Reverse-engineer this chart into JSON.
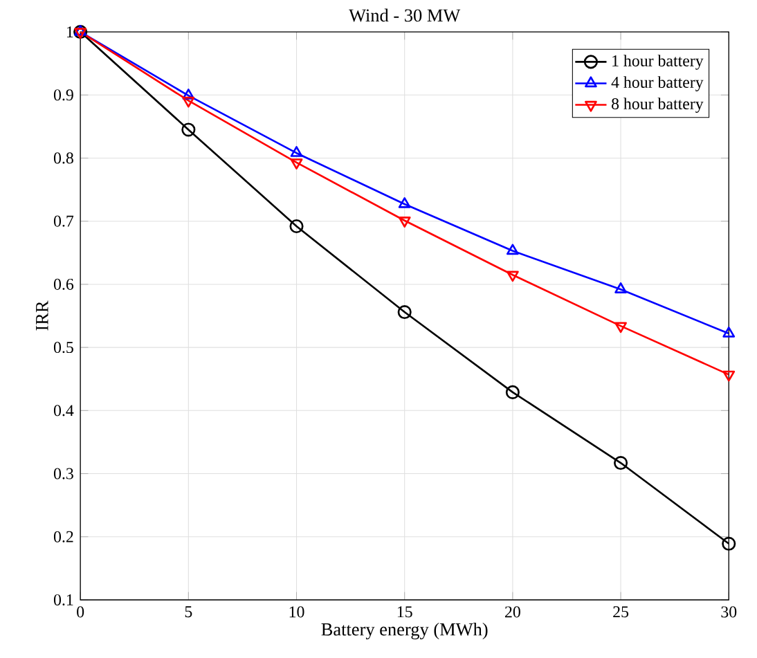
{
  "chart_data": {
    "type": "line",
    "title": "Wind - 30 MW",
    "xlabel": "Battery energy (MWh)",
    "ylabel": "IRR",
    "x": [
      0,
      5,
      10,
      15,
      20,
      25,
      30
    ],
    "series": [
      {
        "name": "1 hour battery",
        "color": "#000000",
        "marker": "circle",
        "values": [
          1.0,
          0.845,
          0.692,
          0.556,
          0.429,
          0.317,
          0.189
        ]
      },
      {
        "name": "4 hour battery",
        "color": "#0000ff",
        "marker": "triangle",
        "values": [
          1.0,
          0.899,
          0.808,
          0.727,
          0.653,
          0.592,
          0.522
        ]
      },
      {
        "name": "8 hour battery",
        "color": "#ff0000",
        "marker": "triangle-down",
        "values": [
          1.0,
          0.891,
          0.793,
          0.701,
          0.615,
          0.534,
          0.457
        ]
      }
    ],
    "xlim": [
      0,
      30
    ],
    "ylim": [
      0.1,
      1
    ],
    "xticks": [
      0,
      5,
      10,
      15,
      20,
      25,
      30
    ],
    "yticks": [
      0.1,
      0.2,
      0.3,
      0.4,
      0.5,
      0.6,
      0.7,
      0.8,
      0.9,
      1
    ],
    "grid": true,
    "legend": "top right",
    "line_style": "solid"
  }
}
